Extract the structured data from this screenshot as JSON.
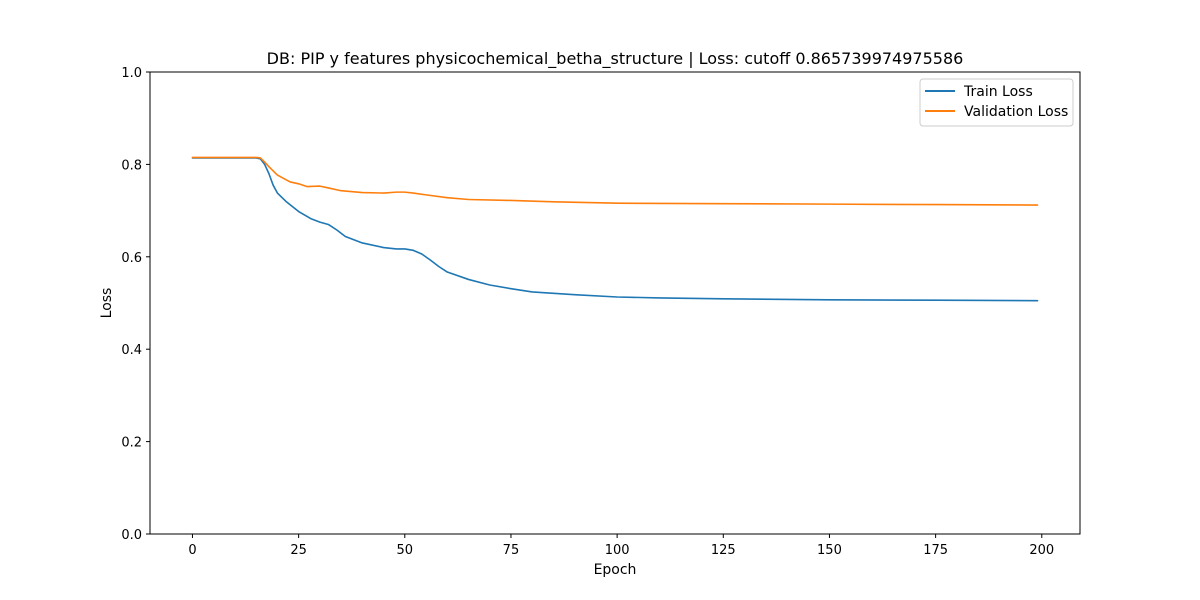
{
  "chart_data": {
    "type": "line",
    "title": "DB: PIP y features physicochemical_betha_structure | Loss: cutoff 0.865739974975586",
    "xlabel": "Epoch",
    "ylabel": "Loss",
    "xlim": [
      -10,
      209
    ],
    "ylim": [
      0.0,
      1.0
    ],
    "xticks": [
      0,
      25,
      50,
      75,
      100,
      125,
      150,
      175,
      200
    ],
    "xtick_labels": [
      "0",
      "25",
      "50",
      "75",
      "100",
      "125",
      "150",
      "175",
      "200"
    ],
    "yticks": [
      0.0,
      0.2,
      0.4,
      0.6,
      0.8,
      1.0
    ],
    "ytick_labels": [
      "0.0",
      "0.2",
      "0.4",
      "0.6",
      "0.8",
      "1.0"
    ],
    "grid": false,
    "legend_position": "top-right",
    "series": [
      {
        "name": "Train Loss",
        "color": "#1f77b4",
        "points": [
          [
            0,
            0.814
          ],
          [
            10,
            0.814
          ],
          [
            15,
            0.814
          ],
          [
            16,
            0.812
          ],
          [
            17,
            0.8
          ],
          [
            18,
            0.78
          ],
          [
            19,
            0.755
          ],
          [
            20,
            0.738
          ],
          [
            22,
            0.72
          ],
          [
            25,
            0.698
          ],
          [
            28,
            0.682
          ],
          [
            30,
            0.675
          ],
          [
            32,
            0.67
          ],
          [
            34,
            0.658
          ],
          [
            36,
            0.644
          ],
          [
            40,
            0.63
          ],
          [
            45,
            0.62
          ],
          [
            48,
            0.617
          ],
          [
            50,
            0.617
          ],
          [
            52,
            0.614
          ],
          [
            54,
            0.606
          ],
          [
            56,
            0.593
          ],
          [
            58,
            0.579
          ],
          [
            60,
            0.567
          ],
          [
            65,
            0.551
          ],
          [
            70,
            0.539
          ],
          [
            75,
            0.531
          ],
          [
            80,
            0.524
          ],
          [
            90,
            0.518
          ],
          [
            100,
            0.513
          ],
          [
            110,
            0.511
          ],
          [
            125,
            0.509
          ],
          [
            150,
            0.507
          ],
          [
            175,
            0.506
          ],
          [
            199,
            0.505
          ]
        ]
      },
      {
        "name": "Validation Loss",
        "color": "#ff7f0e",
        "points": [
          [
            0,
            0.815
          ],
          [
            10,
            0.815
          ],
          [
            15,
            0.815
          ],
          [
            16,
            0.814
          ],
          [
            17,
            0.805
          ],
          [
            18,
            0.795
          ],
          [
            20,
            0.777
          ],
          [
            23,
            0.762
          ],
          [
            25,
            0.758
          ],
          [
            27,
            0.752
          ],
          [
            30,
            0.753
          ],
          [
            32,
            0.749
          ],
          [
            35,
            0.743
          ],
          [
            40,
            0.739
          ],
          [
            45,
            0.738
          ],
          [
            48,
            0.74
          ],
          [
            50,
            0.74
          ],
          [
            52,
            0.738
          ],
          [
            55,
            0.734
          ],
          [
            60,
            0.728
          ],
          [
            65,
            0.724
          ],
          [
            75,
            0.722
          ],
          [
            85,
            0.719
          ],
          [
            100,
            0.716
          ],
          [
            125,
            0.715
          ],
          [
            150,
            0.714
          ],
          [
            175,
            0.713
          ],
          [
            199,
            0.712
          ]
        ]
      }
    ]
  }
}
